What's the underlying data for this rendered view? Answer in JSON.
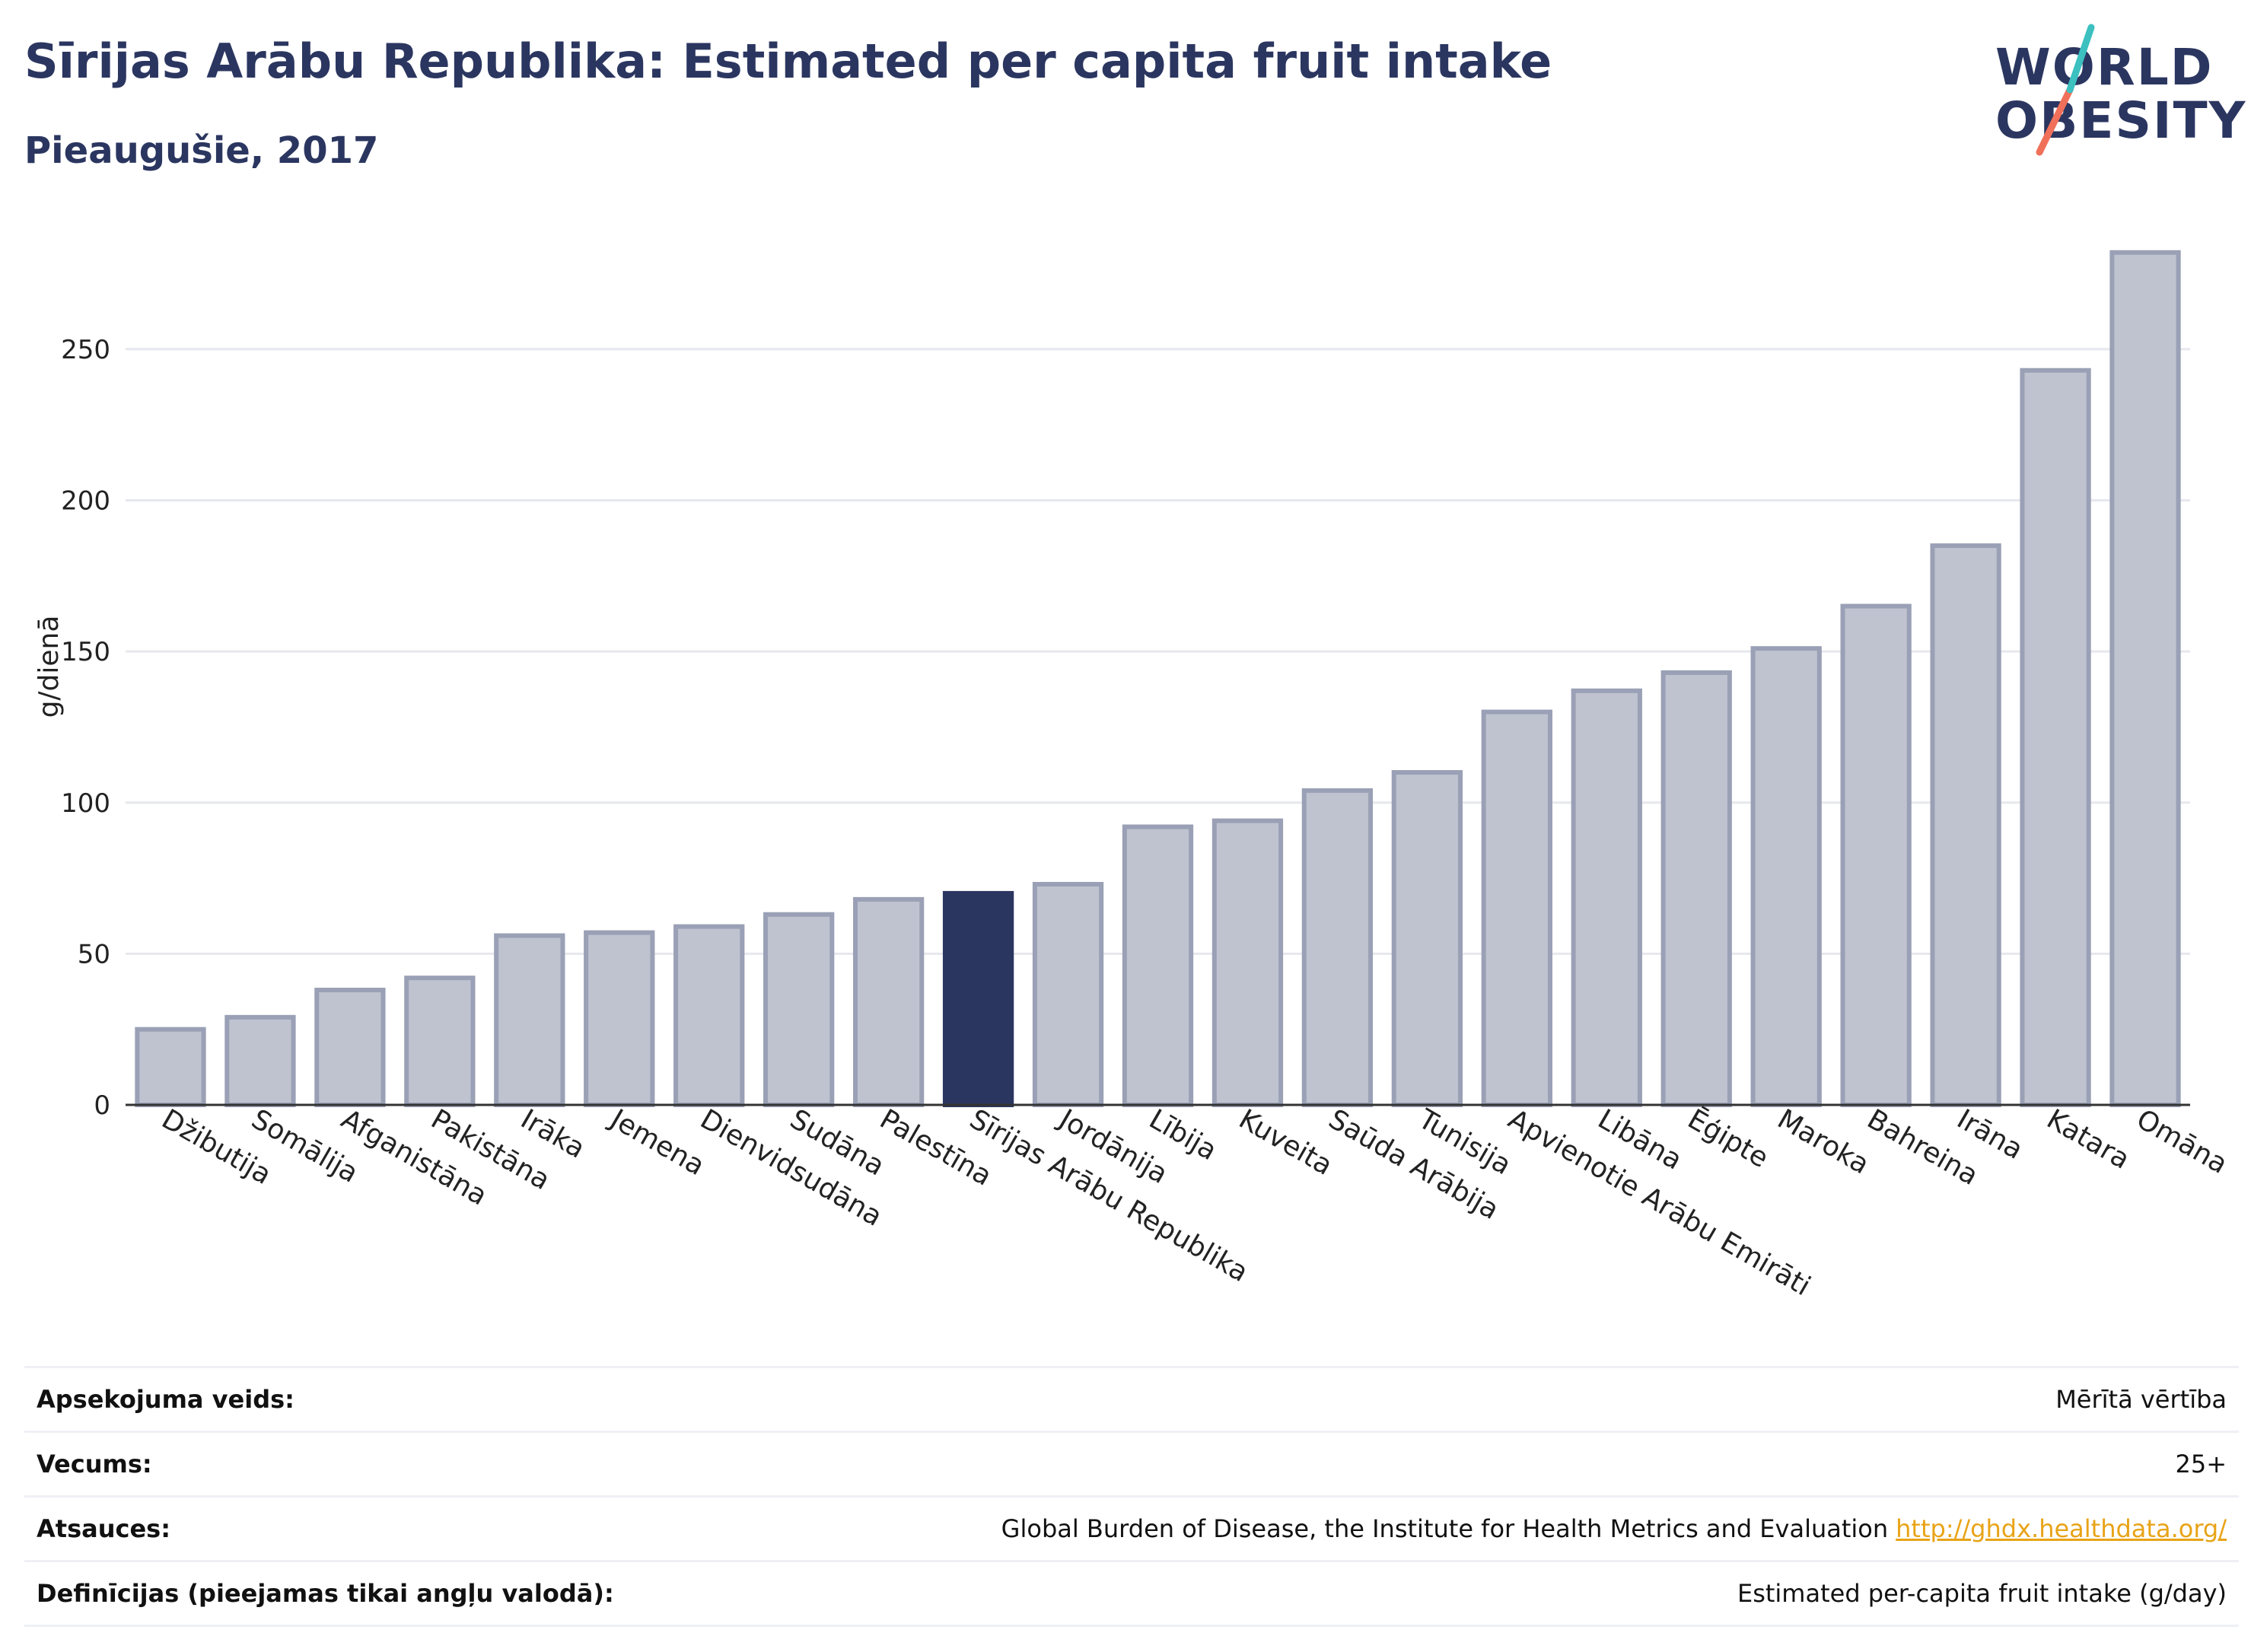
{
  "header": {
    "title": "Sīrijas Arābu Republika: Estimated per capita fruit intake",
    "subtitle": "Pieaugušie, 2017"
  },
  "logo": {
    "line1": "WORLD",
    "line2": "OBESITY",
    "colors": {
      "text": "#2b3660",
      "accent_teal": "#3cc0c0",
      "accent_coral": "#f0705a"
    }
  },
  "chart_data": {
    "type": "bar",
    "ylabel": "g/dienā",
    "ylim": [
      0,
      290
    ],
    "yticks": [
      0,
      50,
      100,
      150,
      200,
      250
    ],
    "grid": true,
    "categories": [
      "Džibutija",
      "Somālija",
      "Afganistāna",
      "Pakistāna",
      "Irāka",
      "Jemena",
      "Dienvidsudāna",
      "Sudāna",
      "Palestīna",
      "Sīrijas Arābu Republika",
      "Jordānija",
      "Lībija",
      "Kuveita",
      "Saūda Arābija",
      "Tunisija",
      "Apvienotie Arābu Emirāti",
      "Libāna",
      "Ēģipte",
      "Maroka",
      "Bahreina",
      "Irāna",
      "Katara",
      "Omāna"
    ],
    "values": [
      25,
      29,
      38,
      42,
      56,
      57,
      59,
      63,
      68,
      70,
      73,
      92,
      94,
      104,
      110,
      130,
      137,
      143,
      151,
      165,
      185,
      243,
      282
    ],
    "highlight": "Sīrijas Arābu Republika",
    "colors": {
      "bar": "#bfc3d0",
      "bar_stroke": "#9aa0b5",
      "highlight": "#2b3660"
    }
  },
  "meta": {
    "rows": [
      {
        "label": "Apsekojuma veids:",
        "value": "Mērītā vērtība"
      },
      {
        "label": "Vecums:",
        "value": "25+"
      },
      {
        "label": "Atsauces:",
        "value": "Global Burden of Disease, the Institute for Health Metrics and Evaluation",
        "link": "http://ghdx.healthdata.org/"
      },
      {
        "label": "Definīcijas (pieejamas tikai angļu valodā):",
        "value": "Estimated per-capita fruit intake (g/day)"
      }
    ]
  }
}
